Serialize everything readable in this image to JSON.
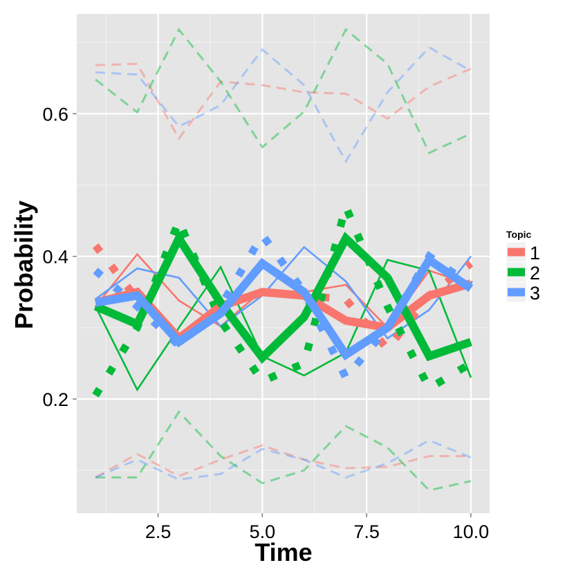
{
  "chart_data": {
    "type": "line",
    "title": "",
    "xlabel": "Time",
    "ylabel": "Probability",
    "xlim": [
      0.55,
      10.45
    ],
    "ylim": [
      0.04,
      0.74
    ],
    "x_ticks": [
      2.5,
      5.0,
      7.5,
      10.0
    ],
    "x_tick_labels": [
      "2.5",
      "5.0",
      "7.5",
      "10.0"
    ],
    "y_ticks": [
      0.2,
      0.4,
      0.6
    ],
    "y_tick_labels": [
      "0.2",
      "0.4",
      "0.6"
    ],
    "grid": true,
    "x": [
      1,
      2,
      3,
      4,
      5,
      6,
      7,
      8,
      9,
      10
    ],
    "legend": {
      "title": "Topic",
      "position": "right",
      "entries": [
        {
          "label": "1",
          "color": "#F8766D"
        },
        {
          "label": "2",
          "color": "#00BA38"
        },
        {
          "label": "3",
          "color": "#619CFF"
        }
      ]
    },
    "series": [
      {
        "topic": "1",
        "kind": "mean",
        "color": "#F8766D",
        "values": [
          0.335,
          0.35,
          0.285,
          0.33,
          0.35,
          0.345,
          0.31,
          0.3,
          0.345,
          0.362
        ]
      },
      {
        "topic": "2",
        "kind": "mean",
        "color": "#00BA38",
        "values": [
          0.33,
          0.305,
          0.425,
          0.335,
          0.258,
          0.315,
          0.425,
          0.37,
          0.26,
          0.28
        ]
      },
      {
        "topic": "3",
        "kind": "mean",
        "color": "#619CFF",
        "values": [
          0.335,
          0.345,
          0.28,
          0.32,
          0.39,
          0.35,
          0.262,
          0.3,
          0.395,
          0.355
        ]
      },
      {
        "topic": "1",
        "kind": "dotted",
        "color": "#F8766D",
        "values": [
          0.415,
          0.34,
          0.285,
          0.33,
          0.35,
          0.345,
          0.34,
          0.27,
          0.345,
          0.39
        ]
      },
      {
        "topic": "2",
        "kind": "dotted",
        "color": "#00BA38",
        "values": [
          0.205,
          0.3,
          0.45,
          0.31,
          0.225,
          0.25,
          0.47,
          0.33,
          0.215,
          0.25
        ]
      },
      {
        "topic": "3",
        "kind": "dotted",
        "color": "#619CFF",
        "values": [
          0.38,
          0.33,
          0.275,
          0.33,
          0.43,
          0.35,
          0.23,
          0.3,
          0.4,
          0.36
        ]
      },
      {
        "topic": "1",
        "kind": "thin-a",
        "color": "#F8766D",
        "values": [
          0.33,
          0.403,
          0.338,
          0.302,
          0.352,
          0.35,
          0.36,
          0.3,
          0.38,
          0.36
        ]
      },
      {
        "topic": "1",
        "kind": "thin-b",
        "color": "#F8766D",
        "values": [
          0.34,
          0.35,
          0.3,
          0.33,
          0.34,
          0.35,
          0.34,
          0.31,
          0.3,
          0.36
        ]
      },
      {
        "topic": "2",
        "kind": "thin-a",
        "color": "#00BA38",
        "values": [
          0.33,
          0.213,
          0.3,
          0.385,
          0.26,
          0.233,
          0.265,
          0.395,
          0.38,
          0.23
        ]
      },
      {
        "topic": "2",
        "kind": "thin-b",
        "color": "#00BA38",
        "values": [
          0.33,
          0.34,
          0.41,
          0.36,
          0.34,
          0.29,
          0.36,
          0.38,
          0.27,
          0.28
        ]
      },
      {
        "topic": "3",
        "kind": "thin-a",
        "color": "#619CFF",
        "values": [
          0.34,
          0.383,
          0.37,
          0.302,
          0.345,
          0.413,
          0.365,
          0.285,
          0.325,
          0.4
        ]
      },
      {
        "topic": "3",
        "kind": "thin-b",
        "color": "#619CFF",
        "values": [
          0.34,
          0.36,
          0.28,
          0.33,
          0.38,
          0.36,
          0.28,
          0.3,
          0.39,
          0.35
        ]
      },
      {
        "topic": "1",
        "kind": "dashed-upper",
        "color": "#F8766D",
        "values": [
          0.668,
          0.67,
          0.565,
          0.645,
          0.64,
          0.63,
          0.628,
          0.593,
          0.638,
          0.663
        ]
      },
      {
        "topic": "2",
        "kind": "dashed-upper",
        "color": "#00BA38",
        "values": [
          0.648,
          0.602,
          0.718,
          0.645,
          0.553,
          0.603,
          0.718,
          0.67,
          0.545,
          0.572
        ]
      },
      {
        "topic": "3",
        "kind": "dashed-upper",
        "color": "#619CFF",
        "values": [
          0.658,
          0.655,
          0.582,
          0.612,
          0.69,
          0.64,
          0.533,
          0.63,
          0.693,
          0.66
        ]
      },
      {
        "topic": "1",
        "kind": "dashed-lower",
        "color": "#F8766D",
        "values": [
          0.09,
          0.123,
          0.092,
          0.115,
          0.135,
          0.115,
          0.103,
          0.105,
          0.12,
          0.12
        ]
      },
      {
        "topic": "2",
        "kind": "dashed-lower",
        "color": "#00BA38",
        "values": [
          0.09,
          0.09,
          0.182,
          0.12,
          0.082,
          0.1,
          0.162,
          0.132,
          0.072,
          0.085
        ]
      },
      {
        "topic": "3",
        "kind": "dashed-lower",
        "color": "#619CFF",
        "values": [
          0.09,
          0.115,
          0.087,
          0.095,
          0.13,
          0.115,
          0.09,
          0.11,
          0.142,
          0.118
        ]
      }
    ]
  }
}
